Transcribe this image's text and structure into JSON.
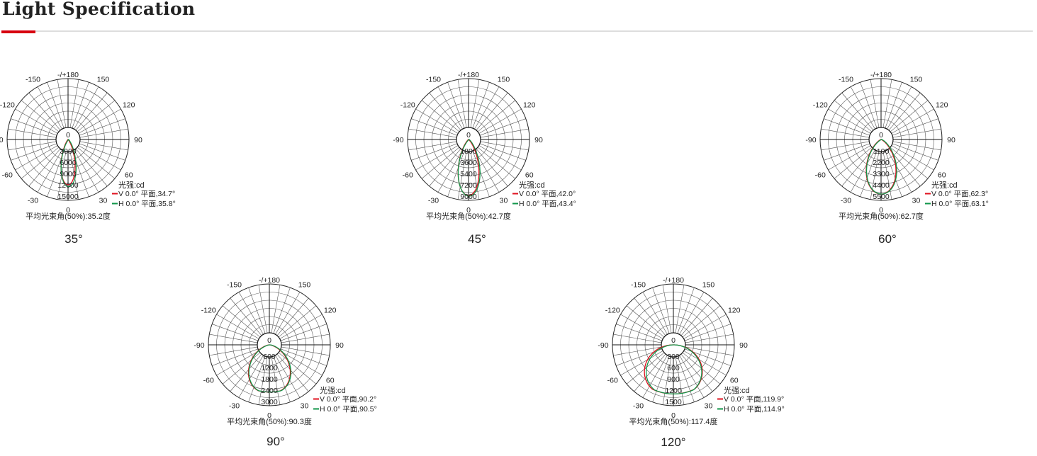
{
  "header": {
    "title": "Light Specification"
  },
  "colors": {
    "accent": "#d7000f",
    "v_curve": "#e0101e",
    "h_curve": "#11964a",
    "grid": "#555555"
  },
  "chart_data": [
    {
      "type": "polar",
      "caption": "35°",
      "angle_labels": [
        "-/+180",
        "150",
        "120",
        "90",
        "60",
        "30",
        "0",
        "-30",
        "-60",
        "-90",
        "-120",
        "-150"
      ],
      "center_label": "0",
      "radial_ticks": [
        "3000",
        "6000",
        "9000",
        "12000",
        "15000"
      ],
      "tick_step": 3000,
      "unit_label": "光强:cd",
      "series": [
        {
          "name": "V 0.0° 平面,34.7°",
          "beam_angle": 34.7,
          "peak": 12000
        },
        {
          "name": "H 0.0° 平面,35.8°",
          "beam_angle": 35.8,
          "peak": 12500
        }
      ],
      "summary": "平均光束角(50%):35.2度"
    },
    {
      "type": "polar",
      "caption": "45°",
      "angle_labels": [
        "-/+180",
        "150",
        "120",
        "90",
        "60",
        "30",
        "0",
        "-30",
        "-60",
        "-90",
        "-120",
        "-150"
      ],
      "center_label": "0",
      "radial_ticks": [
        "1800",
        "3600",
        "5400",
        "7200",
        "9000"
      ],
      "tick_step": 1800,
      "unit_label": "光强:cd",
      "series": [
        {
          "name": "V 0.0° 平面,42.0°",
          "beam_angle": 42.0,
          "peak": 8900
        },
        {
          "name": "H 0.0° 平面,43.4°",
          "beam_angle": 43.4,
          "peak": 9000
        }
      ],
      "summary": "平均光束角(50%):42.7度"
    },
    {
      "type": "polar",
      "caption": "60°",
      "angle_labels": [
        "-/+180",
        "150",
        "120",
        "90",
        "60",
        "30",
        "0",
        "-30",
        "-60",
        "-90",
        "-120",
        "-150"
      ],
      "center_label": "0",
      "radial_ticks": [
        "1100",
        "2200",
        "3300",
        "4400",
        "5500"
      ],
      "tick_step": 1100,
      "unit_label": "光强:cd",
      "series": [
        {
          "name": "V 0.0° 平面,62.3°",
          "beam_angle": 62.3,
          "peak": 5300
        },
        {
          "name": "H 0.0° 平面,63.1°",
          "beam_angle": 63.1,
          "peak": 5300
        }
      ],
      "summary": "平均光束角(50%):62.7度"
    },
    {
      "type": "polar",
      "caption": "90°",
      "angle_labels": [
        "-/+180",
        "150",
        "120",
        "90",
        "60",
        "30",
        "0",
        "-30",
        "-60",
        "-90",
        "-120",
        "-150"
      ],
      "center_label": "0",
      "radial_ticks": [
        "600",
        "1200",
        "1800",
        "2400",
        "3000"
      ],
      "tick_step": 600,
      "unit_label": "光强:cd",
      "series": [
        {
          "name": "V 0.0° 平面,90.2°",
          "beam_angle": 90.2,
          "peak": 2500
        },
        {
          "name": "H 0.0° 平面,90.5°",
          "beam_angle": 90.5,
          "peak": 2500
        }
      ],
      "summary": "平均光束角(50%):90.3度"
    },
    {
      "type": "polar",
      "caption": "120°",
      "angle_labels": [
        "-/+180",
        "150",
        "120",
        "90",
        "60",
        "30",
        "0",
        "-30",
        "-60",
        "-90",
        "-120",
        "-150"
      ],
      "center_label": "0",
      "radial_ticks": [
        "300",
        "600",
        "900",
        "1200",
        "1500"
      ],
      "tick_step": 300,
      "unit_label": "光强:cd",
      "series": [
        {
          "name": "V 0.0° 平面,119.9°",
          "beam_angle": 119.9,
          "peak": 1300
        },
        {
          "name": "H 0.0° 平面,114.9°",
          "beam_angle": 114.9,
          "peak": 1300
        }
      ],
      "summary": "平均光束角(50%):117.4度"
    }
  ]
}
